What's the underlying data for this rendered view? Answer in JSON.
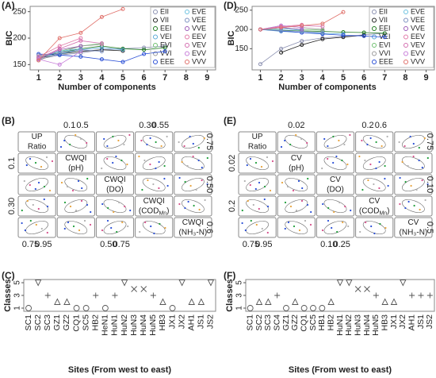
{
  "chart_data": [
    {
      "panel": "(A)",
      "type": "line",
      "xlabel": "Number of components",
      "ylabel": "BIC",
      "x": [
        1,
        2,
        3,
        4,
        5,
        6,
        7,
        8,
        9
      ],
      "xlim": [
        0.6,
        9.4
      ],
      "xticks": [
        1,
        2,
        3,
        4,
        5,
        6,
        7,
        8,
        9
      ],
      "ylim": [
        140,
        260
      ],
      "yticks": [
        150,
        200,
        250
      ],
      "grid": false,
      "legend": "right",
      "series": [
        {
          "name": "EII",
          "color": "#8a8fb0",
          "values": [
            160,
            168,
            172,
            178,
            180,
            182,
            185,
            null,
            null
          ]
        },
        {
          "name": "VII",
          "color": "#222222",
          "values": [
            162,
            170,
            175,
            178,
            176,
            null,
            null,
            null,
            null
          ]
        },
        {
          "name": "EEI",
          "color": "#1f7a1f",
          "values": [
            165,
            172,
            180,
            185,
            180,
            178,
            182,
            null,
            null
          ]
        },
        {
          "name": "VEI",
          "color": "#5aa9d6",
          "values": [
            163,
            170,
            178,
            182,
            178,
            null,
            null,
            null,
            null
          ]
        },
        {
          "name": "EVI",
          "color": "#6fbf6f",
          "values": [
            162,
            175,
            185,
            190,
            null,
            null,
            null,
            null,
            null
          ]
        },
        {
          "name": "VVI",
          "color": "#999999",
          "values": [
            158,
            172,
            185,
            188,
            null,
            null,
            null,
            null,
            null
          ]
        },
        {
          "name": "EEE",
          "color": "#2a4fd6",
          "values": [
            170,
            168,
            165,
            160,
            155,
            170,
            175,
            null,
            null
          ]
        },
        {
          "name": "EVE",
          "color": "#6cc2e0",
          "values": [
            165,
            175,
            180,
            null,
            null,
            null,
            null,
            null,
            null
          ]
        },
        {
          "name": "VEE",
          "color": "#7a8fc0",
          "values": [
            168,
            172,
            178,
            175,
            null,
            null,
            null,
            null,
            null
          ]
        },
        {
          "name": "VVE",
          "color": "#9b59b6",
          "values": [
            160,
            178,
            185,
            null,
            null,
            null,
            null,
            null,
            null
          ]
        },
        {
          "name": "EEV",
          "color": "#e27aa8",
          "values": [
            165,
            185,
            200,
            null,
            null,
            null,
            null,
            null,
            null
          ]
        },
        {
          "name": "VEV",
          "color": "#d46fb0",
          "values": [
            162,
            180,
            195,
            190,
            null,
            null,
            null,
            null,
            null
          ]
        },
        {
          "name": "EVV",
          "color": "#c77dd9",
          "values": [
            160,
            150,
            175,
            null,
            null,
            null,
            null,
            null,
            null
          ]
        },
        {
          "name": "VVV",
          "color": "#e0706a",
          "values": [
            158,
            200,
            210,
            240,
            255,
            null,
            null,
            null,
            null
          ]
        }
      ]
    },
    {
      "panel": "(D)",
      "type": "line",
      "xlabel": "Number of components",
      "ylabel": "BIC",
      "x": [
        1,
        2,
        3,
        4,
        5,
        6,
        7,
        8,
        9
      ],
      "xlim": [
        0.6,
        9.4
      ],
      "xticks": [
        1,
        2,
        3,
        4,
        5,
        6,
        7,
        8,
        9
      ],
      "ylim": [
        95,
        260
      ],
      "yticks": [
        150,
        200,
        250
      ],
      "grid": false,
      "legend": "right",
      "series": [
        {
          "name": "EII",
          "color": "#8a8fb0",
          "values": [
            110,
            150,
            170,
            178,
            182,
            186,
            190,
            null,
            null
          ]
        },
        {
          "name": "VII",
          "color": "#222222",
          "values": [
            null,
            140,
            160,
            175,
            180,
            185,
            null,
            null,
            null
          ]
        },
        {
          "name": "EEI",
          "color": "#1f7a1f",
          "values": [
            200,
            198,
            196,
            195,
            193,
            192,
            190,
            null,
            null
          ]
        },
        {
          "name": "VEI",
          "color": "#5aa9d6",
          "values": [
            200,
            195,
            192,
            190,
            188,
            null,
            null,
            null,
            null
          ]
        },
        {
          "name": "EVI",
          "color": "#6fbf6f",
          "values": [
            200,
            205,
            200,
            198,
            null,
            null,
            null,
            null,
            null
          ]
        },
        {
          "name": "VVI",
          "color": "#999999",
          "values": [
            200,
            210,
            205,
            200,
            null,
            null,
            null,
            null,
            null
          ]
        },
        {
          "name": "EEE",
          "color": "#2a4fd6",
          "values": [
            200,
            196,
            192,
            188,
            185,
            183,
            180,
            null,
            null
          ]
        },
        {
          "name": "EVE",
          "color": "#6cc2e0",
          "values": [
            200,
            202,
            198,
            null,
            null,
            null,
            null,
            null,
            null
          ]
        },
        {
          "name": "VEE",
          "color": "#7a8fc0",
          "values": [
            200,
            197,
            195,
            192,
            null,
            null,
            null,
            null,
            null
          ]
        },
        {
          "name": "VVE",
          "color": "#9b59b6",
          "values": [
            200,
            205,
            200,
            null,
            null,
            null,
            null,
            null,
            null
          ]
        },
        {
          "name": "EEV",
          "color": "#e27aa8",
          "values": [
            200,
            208,
            212,
            null,
            null,
            null,
            null,
            null,
            null
          ]
        },
        {
          "name": "VEV",
          "color": "#d46fb0",
          "values": [
            200,
            206,
            210,
            208,
            null,
            null,
            null,
            null,
            null
          ]
        },
        {
          "name": "EVV",
          "color": "#c77dd9",
          "values": [
            200,
            210,
            205,
            null,
            null,
            null,
            null,
            null,
            null
          ]
        },
        {
          "name": "VVV",
          "color": "#e0706a",
          "values": [
            200,
            205,
            210,
            215,
            245,
            null,
            null,
            null,
            null
          ]
        }
      ]
    },
    {
      "panel": "(C)",
      "type": "dot",
      "xlabel": "Sites (From west to east)",
      "ylabel": "Classes",
      "categories": [
        "SC1",
        "SC2",
        "SC3",
        "GZ1",
        "GZ2",
        "CQ1",
        "SC5",
        "HB2",
        "HeN1",
        "HuN1",
        "HuN2",
        "HuN3",
        "HuN4",
        "HuN5",
        "HB3",
        "JX1",
        "JX2",
        "AH1",
        "JS1",
        "JS2"
      ],
      "values": [
        1,
        5,
        3,
        2,
        2,
        1,
        1,
        3,
        1,
        3,
        5,
        4,
        4,
        3,
        2,
        1,
        5,
        2,
        2,
        5
      ],
      "ylim": [
        0.5,
        5.5
      ],
      "yticks": [
        1,
        3,
        5
      ],
      "color": "#555555",
      "grid": false
    },
    {
      "panel": "(F)",
      "type": "dot",
      "xlabel": "Sites (From west to east)",
      "ylabel": "Classes",
      "categories": [
        "SC1",
        "SC2",
        "SC3",
        "SC4",
        "GZ1",
        "GZ2",
        "CQ1",
        "SC5",
        "HB1",
        "HB2",
        "HuN1",
        "HuN2",
        "HuN3",
        "HuN4",
        "HuN5",
        "HB3",
        "JX1",
        "JX2",
        "AH1",
        "JS1",
        "JS2"
      ],
      "values": [
        1,
        2,
        2,
        3,
        1,
        2,
        1,
        1,
        1,
        2,
        5,
        5,
        4,
        4,
        3,
        2,
        2,
        5,
        3,
        3,
        3
      ],
      "ylim": [
        0.5,
        5.5
      ],
      "yticks": [
        1,
        3,
        5
      ],
      "color": "#555555",
      "grid": false
    }
  ],
  "matrices": [
    {
      "panel": "(B)",
      "variables": [
        {
          "line1": "UP",
          "line2": "Ratio"
        },
        {
          "line1": "CWQI",
          "line2": "(pH)"
        },
        {
          "line1": "CWQI",
          "line2": "(DO)"
        },
        {
          "line1": "CWQI",
          "line2": "(COD",
          "sub": "Mn",
          "tail": ")"
        },
        {
          "line1": "CWQI",
          "line2": "(NH₃-N)"
        }
      ],
      "top_ticks": [
        [],
        [
          "0.1",
          "0.5"
        ],
        [],
        [
          "0.30",
          "0.55"
        ],
        []
      ],
      "bottom_ticks": [
        [
          "0.75",
          "0.95"
        ],
        [],
        [
          "0.50",
          "0.75"
        ],
        [],
        []
      ],
      "left_ticks": [
        [],
        [
          "0.1"
        ],
        [],
        [
          "0.30"
        ],
        []
      ],
      "right_ticks": [
        [
          "0.75"
        ],
        [],
        [
          "0.50"
        ],
        [],
        [
          "0.6"
        ]
      ]
    },
    {
      "panel": "(E)",
      "variables": [
        {
          "line1": "UP",
          "line2": "Ratio"
        },
        {
          "line1": "CV",
          "line2": "(pH)"
        },
        {
          "line1": "CV",
          "line2": "(DO)"
        },
        {
          "line1": "CV",
          "line2": "(COD",
          "sub": "Mn",
          "tail": ")"
        },
        {
          "line1": "CV",
          "line2": "(NH₃-N)"
        }
      ],
      "top_ticks": [
        [],
        [
          "0.02"
        ],
        [],
        [
          "0.2",
          "0.6"
        ],
        []
      ],
      "bottom_ticks": [
        [
          "0.75",
          "0.95"
        ],
        [],
        [
          "0.10",
          "0.25"
        ],
        [],
        []
      ],
      "left_ticks": [
        [],
        [
          "0.02"
        ],
        [],
        [
          "0.2"
        ],
        []
      ],
      "right_ticks": [
        [
          "0.75"
        ],
        [],
        [
          "0.10"
        ],
        [],
        [
          "0.5"
        ]
      ]
    }
  ]
}
